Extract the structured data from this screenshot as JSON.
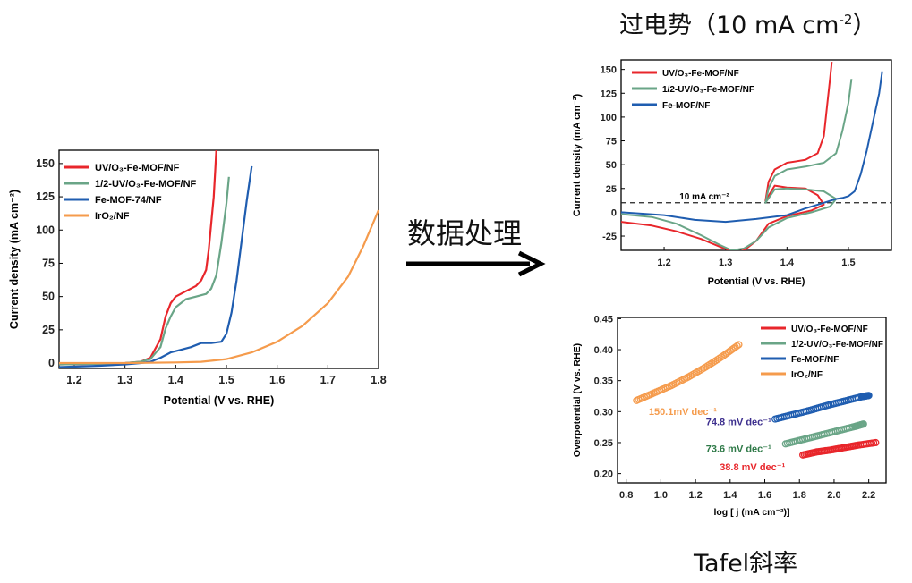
{
  "arrow_label": "数据处理",
  "titles": {
    "overpotential_prefix": "过电势（10 mA cm",
    "overpotential_sup": "-2",
    "overpotential_suffix": "）",
    "tafel": "Tafel斜率"
  },
  "colors": {
    "red": "#e8262b",
    "green": "#6aa587",
    "blue": "#1f5db0",
    "orange": "#f59b4c",
    "purple": "#3d2f8e",
    "darkgreen": "#2f7a48",
    "axis": "#000000"
  },
  "chart_data": [
    {
      "type": "line",
      "xlabel": "Potential (V vs. RHE)",
      "ylabel": "Current density (mA cm⁻²)",
      "xlim": [
        1.17,
        1.8
      ],
      "ylim": [
        -4,
        160
      ],
      "xticks": [
        1.2,
        1.3,
        1.4,
        1.5,
        1.6,
        1.7,
        1.8
      ],
      "yticks": [
        0,
        25,
        50,
        75,
        100,
        125,
        150
      ],
      "legend": "top-left",
      "series": [
        {
          "name": "UV/O₃-Fe-MOF/NF",
          "color": "red",
          "x": [
            1.17,
            1.25,
            1.3,
            1.33,
            1.35,
            1.37,
            1.38,
            1.39,
            1.4,
            1.42,
            1.44,
            1.45,
            1.46,
            1.465,
            1.47,
            1.475,
            1.478,
            1.48
          ],
          "y": [
            -1,
            -0.5,
            0,
            1,
            4,
            18,
            35,
            45,
            50,
            54,
            58,
            62,
            70,
            85,
            105,
            125,
            145,
            160
          ]
        },
        {
          "name": "1/2-UV/O₃-Fe-MOF/NF",
          "color": "green",
          "x": [
            1.17,
            1.25,
            1.3,
            1.33,
            1.35,
            1.37,
            1.38,
            1.39,
            1.4,
            1.42,
            1.44,
            1.46,
            1.47,
            1.48,
            1.49,
            1.5,
            1.505
          ],
          "y": [
            -1,
            -0.5,
            0,
            1,
            3,
            12,
            26,
            35,
            42,
            48,
            50,
            52,
            56,
            66,
            90,
            120,
            140
          ]
        },
        {
          "name": "Fe-MOF-74/NF",
          "color": "blue",
          "x": [
            1.17,
            1.25,
            1.3,
            1.33,
            1.35,
            1.37,
            1.39,
            1.41,
            1.43,
            1.45,
            1.47,
            1.49,
            1.5,
            1.51,
            1.52,
            1.53,
            1.54,
            1.55
          ],
          "y": [
            -3,
            -2,
            -1,
            0,
            1,
            4,
            8,
            10,
            12,
            15,
            15,
            16,
            22,
            38,
            62,
            92,
            122,
            148
          ]
        },
        {
          "name": "IrO₂/NF",
          "color": "orange",
          "x": [
            1.17,
            1.3,
            1.4,
            1.45,
            1.5,
            1.55,
            1.6,
            1.65,
            1.7,
            1.74,
            1.77,
            1.8
          ],
          "y": [
            0,
            0,
            0.5,
            1,
            3,
            8,
            16,
            28,
            45,
            65,
            88,
            115
          ]
        }
      ]
    },
    {
      "type": "line",
      "xlabel": "Potential (V vs. RHE)",
      "ylabel": "Current density (mA cm⁻²)",
      "xlim": [
        1.13,
        1.57
      ],
      "ylim": [
        -40,
        160
      ],
      "xticks": [
        1.2,
        1.3,
        1.4,
        1.5
      ],
      "yticks": [
        -25,
        0,
        25,
        50,
        75,
        100,
        125,
        150
      ],
      "legend": "top-left",
      "reference_line": {
        "y": 10,
        "label": "10 mA cm⁻²"
      },
      "series": [
        {
          "name": "UV/O₃-Fe-MOF/NF",
          "color": "red",
          "x": [
            1.13,
            1.18,
            1.22,
            1.26,
            1.29,
            1.31,
            1.32,
            1.33,
            1.35,
            1.37,
            1.4,
            1.44,
            1.46,
            1.45,
            1.43,
            1.4,
            1.38,
            1.365,
            1.37,
            1.38,
            1.4,
            1.43,
            1.45,
            1.46,
            1.465,
            1.47,
            1.473
          ],
          "y": [
            -10,
            -14,
            -20,
            -28,
            -36,
            -41,
            -42,
            -40,
            -30,
            -12,
            -4,
            2,
            8,
            18,
            25,
            26,
            28,
            12,
            32,
            45,
            52,
            55,
            62,
            80,
            110,
            140,
            158
          ]
        },
        {
          "name": "1/2-UV/O₃-Fe-MOF/NF",
          "color": "green",
          "x": [
            1.13,
            1.18,
            1.22,
            1.26,
            1.29,
            1.31,
            1.33,
            1.35,
            1.37,
            1.4,
            1.44,
            1.47,
            1.48,
            1.46,
            1.43,
            1.4,
            1.38,
            1.365,
            1.37,
            1.38,
            1.4,
            1.43,
            1.46,
            1.48,
            1.49,
            1.5,
            1.505
          ],
          "y": [
            -2,
            -5,
            -12,
            -24,
            -34,
            -40,
            -38,
            -30,
            -16,
            -6,
            0,
            6,
            14,
            22,
            24,
            25,
            24,
            10,
            25,
            38,
            45,
            48,
            52,
            62,
            85,
            115,
            140
          ]
        },
        {
          "name": "Fe-MOF/NF",
          "color": "blue",
          "x": [
            1.13,
            1.2,
            1.25,
            1.3,
            1.35,
            1.4,
            1.43,
            1.46,
            1.48,
            1.49,
            1.5,
            1.51,
            1.52,
            1.53,
            1.54,
            1.55,
            1.555
          ],
          "y": [
            0,
            -3,
            -8,
            -10,
            -7,
            -3,
            4,
            10,
            14,
            15,
            17,
            22,
            40,
            65,
            95,
            125,
            148
          ]
        }
      ]
    },
    {
      "type": "scatter",
      "xlabel": "log [ j (mA cm⁻²)]",
      "ylabel": "Overpotential (V vs. RHE)",
      "xlim": [
        0.75,
        2.3
      ],
      "ylim": [
        0.185,
        0.452
      ],
      "xticks": [
        0.8,
        1.0,
        1.2,
        1.4,
        1.6,
        1.8,
        2.0,
        2.2
      ],
      "yticks": [
        0.2,
        0.25,
        0.3,
        0.35,
        0.4,
        0.45
      ],
      "legend": "top-right",
      "series": [
        {
          "name": "UV/O₃-Fe-MOF/NF",
          "color": "red",
          "slope_label": "38.8 mV dec⁻¹",
          "x": [
            1.82,
            1.9,
            1.98,
            2.06,
            2.14,
            2.24
          ],
          "y": [
            0.23,
            0.235,
            0.238,
            0.242,
            0.246,
            0.25
          ]
        },
        {
          "name": "1/2-UV/O₃-Fe-MOF/NF",
          "color": "green",
          "slope_label": "73.6 mV dec⁻¹",
          "x": [
            1.72,
            1.82,
            1.92,
            2.02,
            2.12,
            2.17
          ],
          "y": [
            0.248,
            0.255,
            0.262,
            0.269,
            0.276,
            0.28
          ]
        },
        {
          "name": "Fe-MOF/NF",
          "color": "blue",
          "slope_label": "74.8 mV dec⁻¹",
          "x": [
            1.66,
            1.76,
            1.86,
            1.96,
            2.06,
            2.16,
            2.2
          ],
          "y": [
            0.288,
            0.295,
            0.302,
            0.31,
            0.317,
            0.324,
            0.326
          ]
        },
        {
          "name": "IrO₂/NF",
          "color": "orange",
          "slope_label": "150.1mV dec⁻¹",
          "x": [
            0.86,
            0.96,
            1.06,
            1.16,
            1.26,
            1.36,
            1.45
          ],
          "y": [
            0.318,
            0.33,
            0.342,
            0.356,
            0.372,
            0.39,
            0.408
          ]
        }
      ]
    }
  ]
}
